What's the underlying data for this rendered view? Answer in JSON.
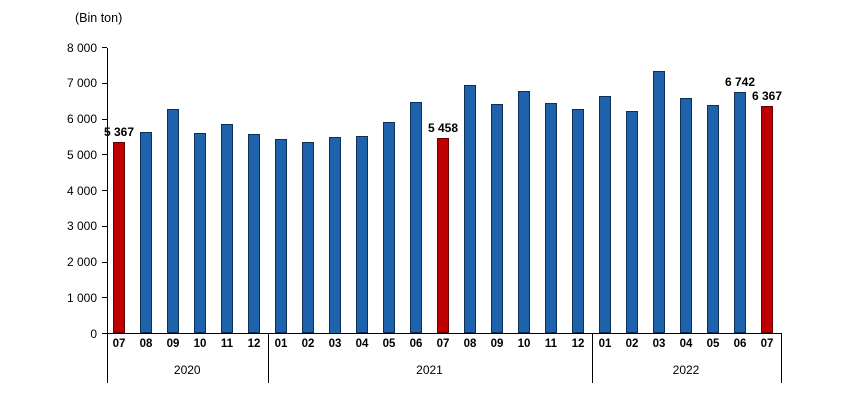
{
  "chart_data": {
    "type": "bar",
    "title": "(Bin ton)",
    "xlabel": "",
    "ylabel": "(Bin ton)",
    "ylim": [
      0,
      8000
    ],
    "ytick_interval": 1000,
    "grid": false,
    "legend": false,
    "yticks": [
      {
        "value": 0,
        "label": "0"
      },
      {
        "value": 1000,
        "label": "1 000"
      },
      {
        "value": 2000,
        "label": "2 000"
      },
      {
        "value": 3000,
        "label": "3 000"
      },
      {
        "value": 4000,
        "label": "4 000"
      },
      {
        "value": 5000,
        "label": "5 000"
      },
      {
        "value": 6000,
        "label": "6 000"
      },
      {
        "value": 7000,
        "label": "7 000"
      },
      {
        "value": 8000,
        "label": "8 000"
      }
    ],
    "colors": {
      "bar": "#1E62AC",
      "bar_border": "#0E2F56",
      "highlight": "#C00000",
      "highlight_border": "#640000",
      "axis": "#000000",
      "text": "#000000"
    },
    "points": [
      {
        "year": "2020",
        "month": "07",
        "value": 5367,
        "highlighted": true,
        "label": "5 367"
      },
      {
        "year": "2020",
        "month": "08",
        "value": 5630,
        "highlighted": false
      },
      {
        "year": "2020",
        "month": "09",
        "value": 6290,
        "highlighted": false
      },
      {
        "year": "2020",
        "month": "10",
        "value": 5620,
        "highlighted": false
      },
      {
        "year": "2020",
        "month": "11",
        "value": 5850,
        "highlighted": false
      },
      {
        "year": "2020",
        "month": "12",
        "value": 5590,
        "highlighted": false
      },
      {
        "year": "2021",
        "month": "01",
        "value": 5450,
        "highlighted": false
      },
      {
        "year": "2021",
        "month": "02",
        "value": 5360,
        "highlighted": false
      },
      {
        "year": "2021",
        "month": "03",
        "value": 5500,
        "highlighted": false
      },
      {
        "year": "2021",
        "month": "04",
        "value": 5520,
        "highlighted": false
      },
      {
        "year": "2021",
        "month": "05",
        "value": 5930,
        "highlighted": false
      },
      {
        "year": "2021",
        "month": "06",
        "value": 6480,
        "highlighted": false
      },
      {
        "year": "2021",
        "month": "07",
        "value": 5458,
        "highlighted": true,
        "label": "5 458"
      },
      {
        "year": "2021",
        "month": "08",
        "value": 6950,
        "highlighted": false
      },
      {
        "year": "2021",
        "month": "09",
        "value": 6410,
        "highlighted": false
      },
      {
        "year": "2021",
        "month": "10",
        "value": 6790,
        "highlighted": false
      },
      {
        "year": "2021",
        "month": "11",
        "value": 6450,
        "highlighted": false
      },
      {
        "year": "2021",
        "month": "12",
        "value": 6280,
        "highlighted": false
      },
      {
        "year": "2022",
        "month": "01",
        "value": 6640,
        "highlighted": false
      },
      {
        "year": "2022",
        "month": "02",
        "value": 6220,
        "highlighted": false
      },
      {
        "year": "2022",
        "month": "03",
        "value": 7340,
        "highlighted": false
      },
      {
        "year": "2022",
        "month": "04",
        "value": 6590,
        "highlighted": false
      },
      {
        "year": "2022",
        "month": "05",
        "value": 6380,
        "highlighted": false
      },
      {
        "year": "2022",
        "month": "06",
        "value": 6742,
        "highlighted": false,
        "label": "6 742"
      },
      {
        "year": "2022",
        "month": "07",
        "value": 6367,
        "highlighted": true,
        "label": "6 367"
      }
    ],
    "groups": [
      {
        "year": "2020",
        "months": [
          "07",
          "08",
          "09",
          "10",
          "11",
          "12"
        ]
      },
      {
        "year": "2021",
        "months": [
          "01",
          "02",
          "03",
          "04",
          "05",
          "06",
          "07",
          "08",
          "09",
          "10",
          "11",
          "12"
        ]
      },
      {
        "year": "2022",
        "months": [
          "01",
          "02",
          "03",
          "04",
          "05",
          "06",
          "07"
        ]
      }
    ]
  }
}
